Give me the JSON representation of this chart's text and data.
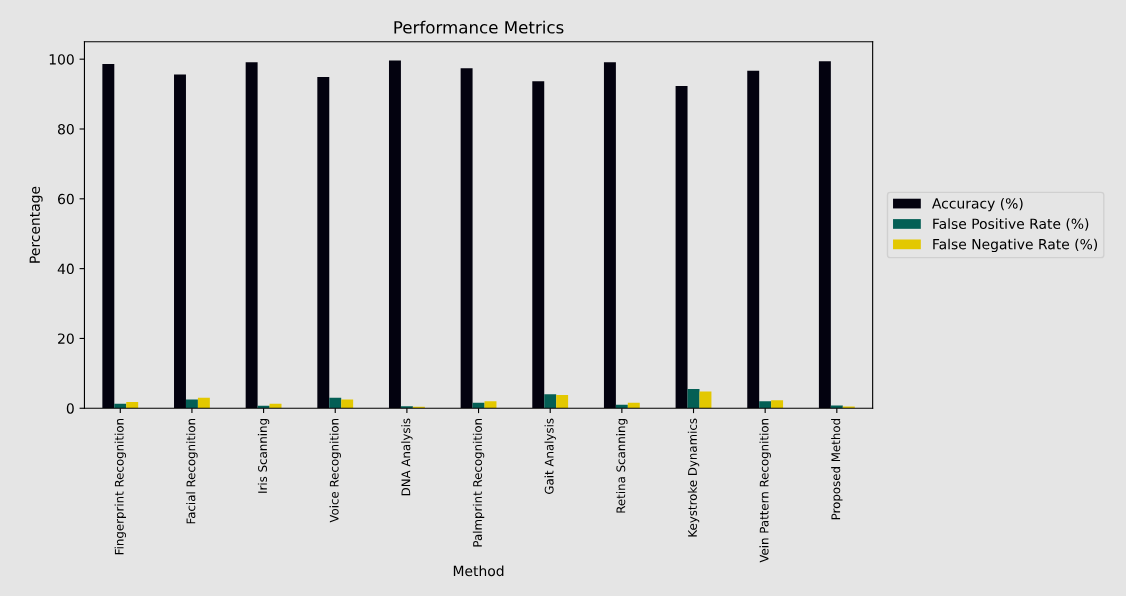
{
  "chart_data": {
    "type": "bar",
    "title": "Performance Metrics",
    "xlabel": "Method",
    "ylabel": "Percentage",
    "categories": [
      "Fingerprint Recognition",
      "Facial Recognition",
      "Iris Scanning",
      "Voice Recognition",
      "DNA Analysis",
      "Palmprint Recognition",
      "Gait Analysis",
      "Retina Scanning",
      "Keystroke Dynamics",
      "Vein Pattern Recognition",
      "Proposed Method"
    ],
    "series": [
      {
        "name": "Accuracy (%)",
        "color": "#03020f",
        "values": [
          98.6,
          95.6,
          99.1,
          94.9,
          99.6,
          97.4,
          93.7,
          99.1,
          92.3,
          96.7,
          99.4
        ]
      },
      {
        "name": "False Positive Rate (%)",
        "color": "#045f55",
        "values": [
          1.3,
          2.5,
          0.7,
          3.0,
          0.6,
          1.6,
          4.0,
          1.0,
          5.5,
          2.0,
          0.8
        ]
      },
      {
        "name": "False Negative Rate (%)",
        "color": "#e3c800",
        "values": [
          1.8,
          3.0,
          1.3,
          2.5,
          0.4,
          2.0,
          3.8,
          1.6,
          4.8,
          2.3,
          0.5
        ]
      }
    ],
    "ylim": [
      0,
      105
    ],
    "yticks": [
      0,
      20,
      40,
      60,
      80,
      100
    ],
    "grid": false,
    "legend": "right"
  }
}
